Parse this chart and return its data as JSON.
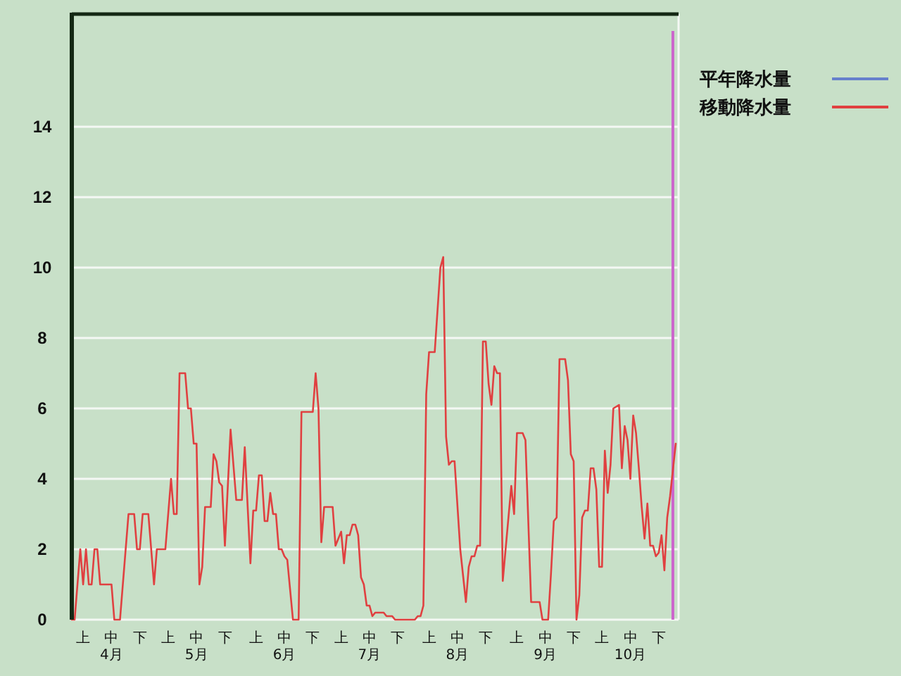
{
  "chart_data": {
    "type": "line",
    "xlim": [
      "--04-01",
      "--11-01"
    ],
    "xticks": [
      {
        "value": "--04-05",
        "label": "上"
      },
      {
        "value": "--04-15",
        "label": "中\n4月"
      },
      {
        "value": "--04-25",
        "label": "下"
      },
      {
        "value": "--05-05",
        "label": "上"
      },
      {
        "value": "--05-15",
        "label": "中\n5月"
      },
      {
        "value": "--05-25",
        "label": "下"
      },
      {
        "value": "--06-05",
        "label": "上"
      },
      {
        "value": "--06-15",
        "label": "中\n6月"
      },
      {
        "value": "--06-25",
        "label": "下"
      },
      {
        "value": "--07-05",
        "label": "上"
      },
      {
        "value": "--07-15",
        "label": "中\n7月"
      },
      {
        "value": "--07-25",
        "label": "下"
      },
      {
        "value": "--08-05",
        "label": "上"
      },
      {
        "value": "--08-15",
        "label": "中\n8月"
      },
      {
        "value": "--08-25",
        "label": "下"
      },
      {
        "value": "--09-05",
        "label": "上"
      },
      {
        "value": "--09-15",
        "label": "中\n9月"
      },
      {
        "value": "--09-25",
        "label": "下"
      },
      {
        "value": "--10-05",
        "label": "上"
      },
      {
        "value": "--10-15",
        "label": "中\n10月"
      },
      {
        "value": "--10-25",
        "label": "下"
      }
    ],
    "ylim": [
      0,
      17.2
    ],
    "yticks": [
      0,
      2,
      4,
      6,
      8,
      10,
      12,
      14
    ],
    "grid": "y",
    "legend": "top right",
    "ref_lines": [
      {
        "axis": "x",
        "value": "--10-30",
        "color": "#cc66cc"
      }
    ],
    "series": [
      {
        "name": "平年降水量",
        "color": "#6680cc"
      },
      {
        "name": "移動降水量",
        "color": "#e04040",
        "x": [
          "--04-01",
          "--04-02",
          "--04-04",
          "--04-05",
          "--04-06",
          "--04-07",
          "--04-08",
          "--04-09",
          "--04-10",
          "--04-11",
          "--04-15",
          "--04-16",
          "--04-18",
          "--04-21",
          "--04-23",
          "--04-24",
          "--04-25",
          "--04-26",
          "--04-28",
          "--04-30",
          "--05-01",
          "--05-04",
          "--05-06",
          "--05-07",
          "--05-08",
          "--05-09",
          "--05-11",
          "--05-12",
          "--05-13",
          "--05-14",
          "--05-15",
          "--05-16",
          "--05-17",
          "--05-18",
          "--05-20",
          "--05-21",
          "--05-22",
          "--05-23",
          "--05-24",
          "--05-25",
          "--05-27",
          "--05-29",
          "--05-31",
          "--06-01",
          "--06-03",
          "--06-04",
          "--06-05",
          "--06-06",
          "--06-07",
          "--06-08",
          "--06-09",
          "--06-10",
          "--06-11",
          "--06-12",
          "--06-13",
          "--06-14",
          "--06-15",
          "--06-16",
          "--06-18",
          "--06-20",
          "--06-21",
          "--06-25",
          "--06-26",
          "--06-27",
          "--06-28",
          "--06-29",
          "--07-02",
          "--07-03",
          "--07-05",
          "--07-06",
          "--07-07",
          "--07-08",
          "--07-09",
          "--07-10",
          "--07-11",
          "--07-12",
          "--07-13",
          "--07-14",
          "--07-15",
          "--07-16",
          "--07-17",
          "--07-20",
          "--07-21",
          "--07-23",
          "--07-24",
          "--07-31",
          "--08-01",
          "--08-02",
          "--08-03",
          "--08-04",
          "--08-05",
          "--08-07",
          "--08-09",
          "--08-10",
          "--08-11",
          "--08-12",
          "--08-13",
          "--08-14",
          "--08-16",
          "--08-18",
          "--08-19",
          "--08-20",
          "--08-21",
          "--08-22",
          "--08-23",
          "--08-24",
          "--08-25",
          "--08-26",
          "--08-27",
          "--08-28",
          "--08-29",
          "--08-30",
          "--08-31",
          "--09-03",
          "--09-04",
          "--09-05",
          "--09-07",
          "--09-08",
          "--09-10",
          "--09-13",
          "--09-14",
          "--09-16",
          "--09-17",
          "--09-18",
          "--09-19",
          "--09-20",
          "--09-22",
          "--09-23",
          "--09-24",
          "--09-25",
          "--09-26",
          "--09-27",
          "--09-28",
          "--09-29",
          "--09-30",
          "--10-01",
          "--10-02",
          "--10-03",
          "--10-04",
          "--10-05",
          "--10-06",
          "--10-07",
          "--10-08",
          "--10-09",
          "--10-11",
          "--10-12",
          "--10-13",
          "--10-14",
          "--10-15",
          "--10-16",
          "--10-17",
          "--10-18",
          "--10-19",
          "--10-20",
          "--10-21",
          "--10-22",
          "--10-23",
          "--10-24",
          "--10-25",
          "--10-26",
          "--10-27",
          "--10-28",
          "--10-29",
          "--10-31"
        ],
        "values": [
          0,
          0,
          2,
          1,
          2,
          1,
          1,
          2,
          2,
          1,
          1,
          0,
          0,
          3,
          3,
          2,
          2,
          3,
          3,
          1,
          2,
          2,
          4,
          3,
          3,
          7,
          7,
          6,
          6,
          5,
          5,
          1,
          1.5,
          3.2,
          3.2,
          4.7,
          4.5,
          3.9,
          3.8,
          2.1,
          5.4,
          3.4,
          3.4,
          4.9,
          1.6,
          3.1,
          3.1,
          4.1,
          4.1,
          2.8,
          2.8,
          3.6,
          3.0,
          3.0,
          2.0,
          2.0,
          1.8,
          1.7,
          0,
          0,
          5.9,
          5.9,
          7.0,
          6.0,
          2.2,
          3.2,
          3.2,
          2.1,
          2.5,
          1.6,
          2.4,
          2.4,
          2.7,
          2.7,
          2.4,
          1.2,
          1.0,
          0.4,
          0.4,
          0.1,
          0.2,
          0.2,
          0.1,
          0.1,
          0,
          0,
          0.1,
          0.1,
          0.4,
          6.4,
          7.6,
          7.6,
          10.0,
          10.3,
          5.2,
          4.4,
          4.5,
          4.5,
          2.0,
          0.5,
          1.5,
          1.8,
          1.8,
          2.1,
          2.1,
          7.9,
          7.9,
          6.7,
          6.1,
          7.2,
          7.0,
          7.0,
          1.1,
          3.8,
          3.0,
          5.3,
          5.3,
          5.1,
          0.5,
          0.5,
          0,
          0,
          1.3,
          2.8,
          2.9,
          7.4,
          7.4,
          6.8,
          4.7,
          4.5,
          0,
          0.7,
          2.9,
          3.1,
          3.1,
          4.3,
          4.3,
          3.7,
          1.5,
          1.5,
          4.8,
          3.6,
          4.4,
          6.0,
          6.1,
          4.3,
          5.5,
          5.1,
          4.0,
          5.8,
          5.3,
          4.3,
          3.2,
          2.3,
          3.3,
          2.1,
          2.1,
          1.8,
          1.9,
          2.4,
          1.4,
          2.9,
          3.5,
          5.0
        ]
      }
    ]
  }
}
